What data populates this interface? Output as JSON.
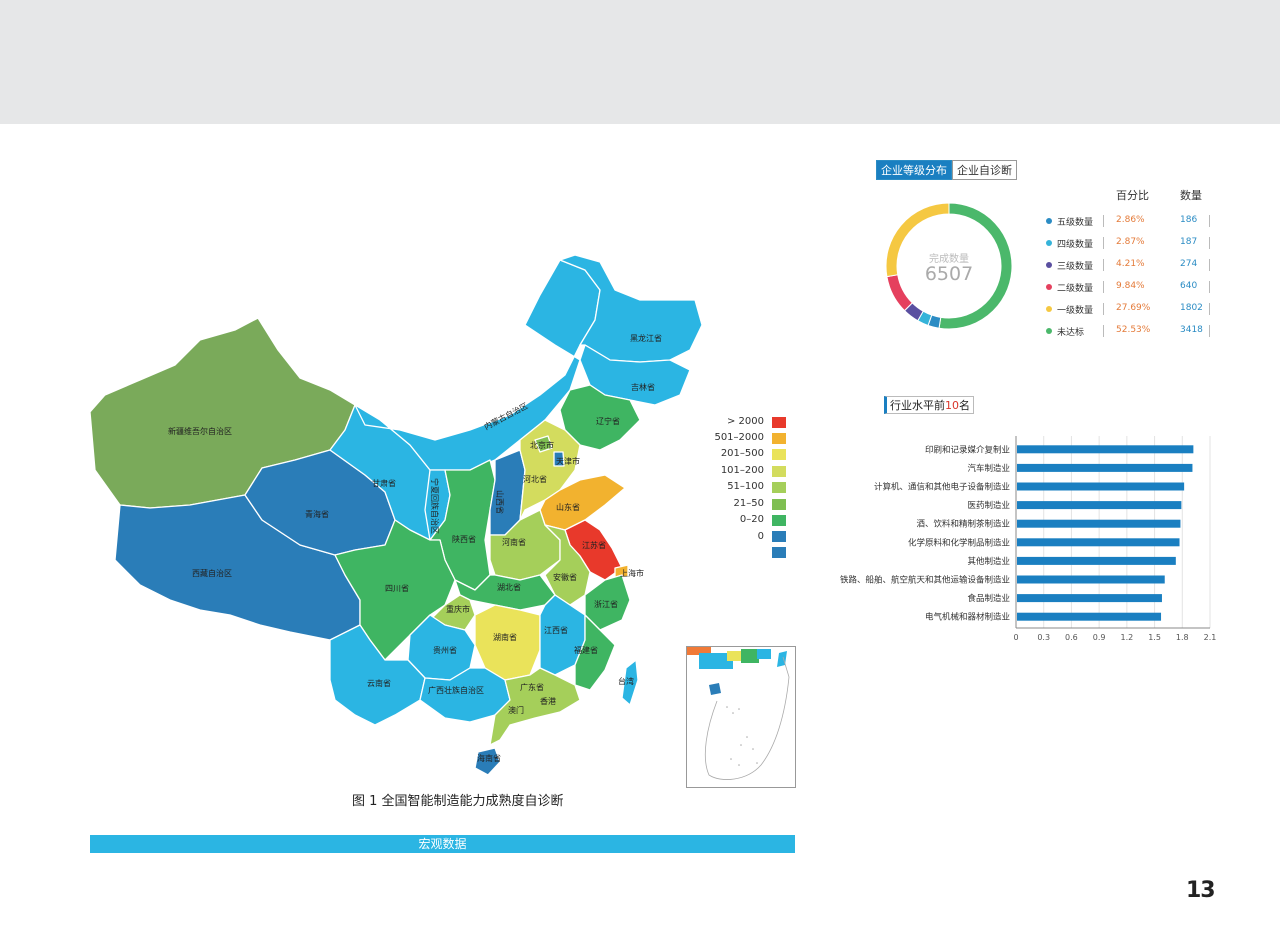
{
  "page_number": "13",
  "map": {
    "caption": "图 1  全国智能制造能力成熟度自诊断",
    "section_bar": "宏观数据",
    "legend": [
      {
        "label": "> 2000",
        "color": "#e8392b"
      },
      {
        "label": "501–2000",
        "color": "#f2b22f"
      },
      {
        "label": "201–500",
        "color": "#eae35a"
      },
      {
        "label": "101–200",
        "color": "#d3dc5e"
      },
      {
        "label": "51–100",
        "color": "#a5cf5a"
      },
      {
        "label": "21–50",
        "color": "#7fbf52"
      },
      {
        "label": "0–20",
        "color": "#3fb562"
      },
      {
        "label": "0",
        "color": "#2a7db8"
      },
      {
        "label": "",
        "color": "#2a7db8"
      }
    ],
    "provinces": {
      "xinjiang": "新疆维吾尔自治区",
      "xizang": "西藏自治区",
      "qinghai": "青海省",
      "gansu": "甘肃省",
      "neimenggu": "内蒙古自治区",
      "heilongjiang": "黑龙江省",
      "jilin": "吉林省",
      "liaoning": "辽宁省",
      "beijing": "北京市",
      "tianjin": "天津市",
      "hebei": "河北省",
      "shanxi": "山西省",
      "shandong": "山东省",
      "ningxia": "宁夏回族自治区",
      "shaanxi": "陕西省",
      "henan": "河南省",
      "jiangsu": "江苏省",
      "shanghai": "上海市",
      "anhui": "安徽省",
      "hubei": "湖北省",
      "sichuan": "四川省",
      "chongqing": "重庆市",
      "zhejiang": "浙江省",
      "hunan": "湖南省",
      "jiangxi": "江西省",
      "guizhou": "贵州省",
      "fujian": "福建省",
      "yunnan": "云南省",
      "guangxi": "广西壮族自治区",
      "guangdong": "广东省",
      "xianggang": "香港",
      "aomen": "澳门",
      "taiwan": "台湾",
      "hainan": "海南省"
    }
  },
  "donut": {
    "tabs": [
      "企业等级分布",
      "企业自诊断"
    ],
    "col_percent": "百分比",
    "col_count": "数量",
    "center_label": "完成数量",
    "center_value": "6507",
    "items": [
      {
        "name": "五级数量",
        "percent": "2.86%",
        "count": "186",
        "value": 2.86,
        "color": "#2b8cc4"
      },
      {
        "name": "四级数量",
        "percent": "2.87%",
        "count": "187",
        "value": 2.87,
        "color": "#35b3d9"
      },
      {
        "name": "三级数量",
        "percent": "4.21%",
        "count": "274",
        "value": 4.21,
        "color": "#5a4fa0"
      },
      {
        "name": "二级数量",
        "percent": "9.84%",
        "count": "640",
        "value": 9.84,
        "color": "#e5405e"
      },
      {
        "name": "一级数量",
        "percent": "27.69%",
        "count": "1802",
        "value": 27.69,
        "color": "#f5c842"
      },
      {
        "name": "未达标",
        "percent": "52.53%",
        "count": "3418",
        "value": 52.53,
        "color": "#4bb86b"
      }
    ]
  },
  "chart_data": {
    "type": "bar",
    "orientation": "horizontal",
    "title_prefix": "行业水平前",
    "title_num": "10",
    "title_suffix": "名",
    "categories": [
      "印刷和记录媒介复制业",
      "汽车制造业",
      "计算机、通信和其他电子设备制造业",
      "医药制造业",
      "酒、饮料和精制茶制造业",
      "化学原料和化学制品制造业",
      "其他制造业",
      "铁路、船舶、航空航天和其他运输设备制造业",
      "食品制造业",
      "电气机械和器材制造业"
    ],
    "values": [
      1.92,
      1.91,
      1.82,
      1.79,
      1.78,
      1.77,
      1.73,
      1.61,
      1.58,
      1.57
    ],
    "xlim": [
      0,
      2.1
    ],
    "xticks": [
      "0",
      "0.3",
      "0.6",
      "0.9",
      "1.2",
      "1.5",
      "1.8",
      "2.1"
    ],
    "bar_color": "#1a7fc1"
  }
}
